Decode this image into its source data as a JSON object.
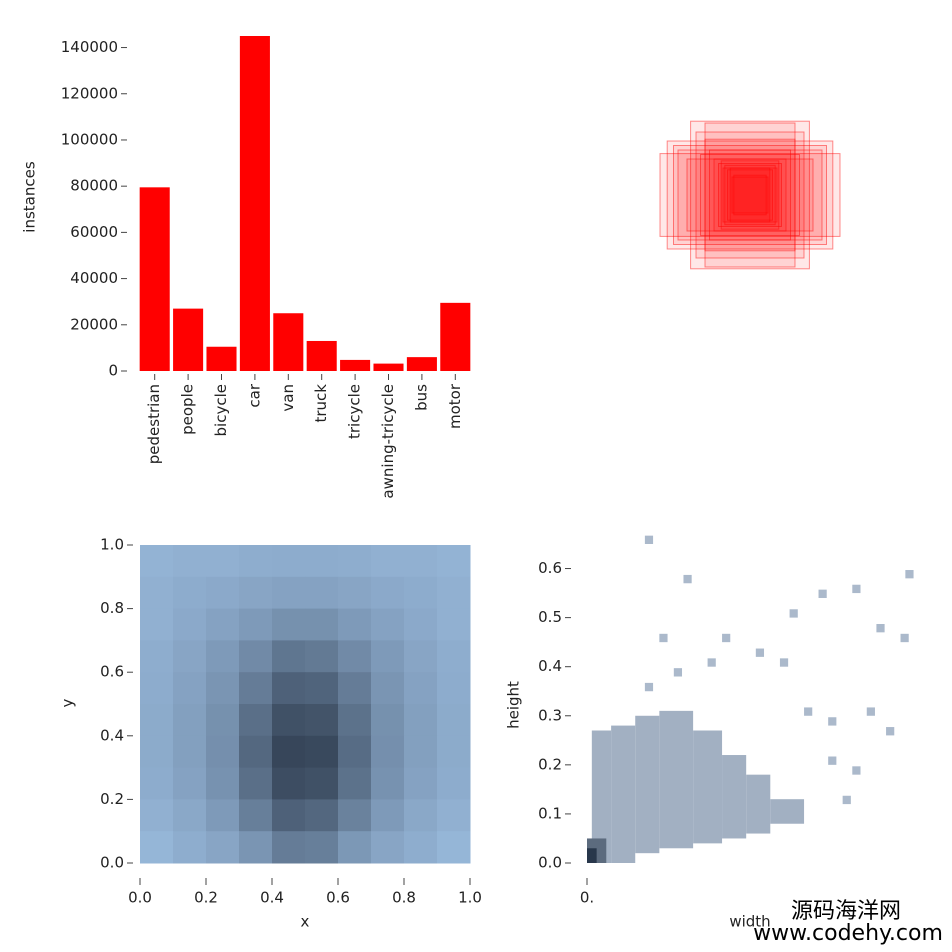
{
  "chart_data": [
    {
      "type": "bar",
      "ylabel": "instances",
      "color": "#ff0000",
      "categories": [
        "pedestrian",
        "people",
        "bicycle",
        "car",
        "van",
        "truck",
        "tricycle",
        "awning-tricycle",
        "bus",
        "motor"
      ],
      "values": [
        79500,
        27000,
        10500,
        145000,
        25000,
        13000,
        4800,
        3200,
        6000,
        29500
      ],
      "ylim": [
        0,
        145000
      ],
      "yticks": [
        0,
        20000,
        40000,
        60000,
        80000,
        100000,
        120000,
        140000
      ]
    },
    {
      "type": "boxes",
      "color": "#ff0000",
      "widths": [
        1.0,
        0.92,
        0.66,
        0.5,
        0.8,
        0.6,
        0.55,
        0.45,
        0.4,
        0.35,
        0.3,
        0.25,
        0.2,
        0.7,
        0.85,
        0.5,
        0.32,
        0.28,
        0.22,
        0.18
      ],
      "heights": [
        0.46,
        0.6,
        0.82,
        0.8,
        0.5,
        0.7,
        0.45,
        0.5,
        0.4,
        0.35,
        0.3,
        0.28,
        0.2,
        0.4,
        0.55,
        0.62,
        0.38,
        0.33,
        0.3,
        0.22
      ]
    },
    {
      "type": "heatmap",
      "xlabel": "x",
      "ylabel": "y",
      "color_low": [
        170,
        206,
        243
      ],
      "color_high": [
        55,
        70,
        90
      ],
      "xlim": [
        0,
        1
      ],
      "ylim": [
        0,
        1
      ],
      "xticks": [
        {
          "value": 0,
          "label": "0.0"
        },
        0.2,
        0.4,
        0.6,
        0.8,
        {
          "value": 1,
          "label": "1.0"
        }
      ],
      "yticks": [
        {
          "value": 0,
          "label": "0.0"
        },
        0.2,
        0.4,
        0.6,
        0.8,
        {
          "value": 1,
          "label": "1.0"
        }
      ],
      "values": [
        [
          20,
          22,
          22,
          24,
          25,
          25,
          24,
          22,
          22,
          20
        ],
        [
          22,
          25,
          27,
          30,
          32,
          32,
          30,
          27,
          25,
          22
        ],
        [
          22,
          27,
          32,
          38,
          45,
          45,
          38,
          32,
          27,
          22
        ],
        [
          24,
          30,
          38,
          50,
          65,
          62,
          50,
          38,
          30,
          24
        ],
        [
          25,
          32,
          42,
          60,
          80,
          78,
          60,
          42,
          32,
          25
        ],
        [
          26,
          34,
          45,
          70,
          92,
          90,
          68,
          45,
          34,
          26
        ],
        [
          26,
          34,
          46,
          75,
          100,
          98,
          72,
          46,
          34,
          26
        ],
        [
          25,
          32,
          44,
          70,
          95,
          92,
          68,
          44,
          32,
          25
        ],
        [
          22,
          28,
          38,
          58,
          80,
          76,
          56,
          38,
          28,
          22
        ],
        [
          18,
          24,
          30,
          42,
          60,
          58,
          40,
          30,
          24,
          18
        ]
      ]
    },
    {
      "type": "hist2d",
      "xlabel": "width",
      "ylabel": "height",
      "color_low": [
        214,
        228,
        245
      ],
      "color_high": [
        40,
        55,
        75
      ],
      "xlim": [
        0,
        0.68
      ],
      "ylim": [
        0,
        0.65
      ],
      "xticks": [
        {
          "value": 0,
          "label": "0."
        }
      ],
      "yticks": [
        {
          "value": 0,
          "label": "0.0"
        },
        0.1,
        0.2,
        0.3,
        0.4,
        0.5,
        0.6
      ],
      "x0": [
        0.01,
        0.05,
        0.1,
        0.15,
        0.22,
        0.28,
        0.33,
        0.38,
        0.0,
        0.0,
        0.12,
        0.18,
        0.25,
        0.28,
        0.35,
        0.4,
        0.45,
        0.5,
        0.42,
        0.48,
        0.55,
        0.6,
        0.65,
        0.5,
        0.55,
        0.58,
        0.62,
        0.15,
        0.2,
        0.53,
        0.66,
        0.12
      ],
      "x1": [
        0.05,
        0.1,
        0.15,
        0.22,
        0.28,
        0.33,
        0.38,
        0.45,
        0.04,
        0.02,
        0.137,
        0.197,
        0.267,
        0.297,
        0.367,
        0.417,
        0.467,
        0.517,
        0.437,
        0.497,
        0.567,
        0.617,
        0.667,
        0.517,
        0.567,
        0.597,
        0.637,
        0.167,
        0.217,
        0.547,
        0.677,
        0.137
      ],
      "y0": [
        0.0,
        0.0,
        0.02,
        0.03,
        0.04,
        0.05,
        0.06,
        0.08,
        0.0,
        0.0,
        0.35,
        0.38,
        0.4,
        0.45,
        0.42,
        0.4,
        0.3,
        0.28,
        0.5,
        0.54,
        0.55,
        0.47,
        0.45,
        0.2,
        0.18,
        0.3,
        0.26,
        0.45,
        0.57,
        0.12,
        0.58,
        0.65
      ],
      "y1": [
        0.27,
        0.28,
        0.3,
        0.31,
        0.27,
        0.22,
        0.18,
        0.13,
        0.05,
        0.03,
        0.367,
        0.397,
        0.417,
        0.467,
        0.437,
        0.417,
        0.317,
        0.297,
        0.517,
        0.557,
        0.567,
        0.487,
        0.467,
        0.217,
        0.197,
        0.317,
        0.277,
        0.467,
        0.587,
        0.137,
        0.597,
        0.667
      ],
      "values": [
        30,
        30,
        30,
        30,
        30,
        30,
        30,
        30,
        70,
        100,
        25,
        25,
        25,
        25,
        25,
        25,
        25,
        25,
        25,
        25,
        25,
        25,
        25,
        25,
        25,
        25,
        25,
        25,
        25,
        25,
        25,
        25
      ]
    }
  ],
  "watermark": {
    "line1": "源码海洋网",
    "line2": "www.codehy.com"
  }
}
